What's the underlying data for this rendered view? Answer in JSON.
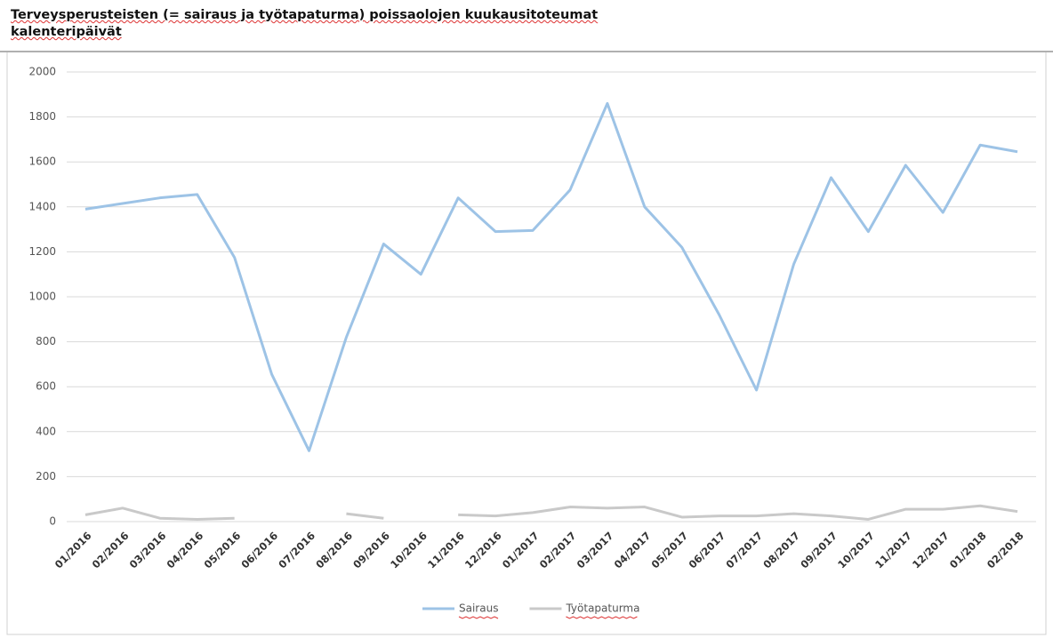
{
  "chart_data": {
    "type": "line",
    "title": [
      "Terveysperusteisten (= sairaus ja työtapaturma) poissaolojen kuukausitoteumat",
      "kalenteripäivät"
    ],
    "categories": [
      "01/2016",
      "02/2016",
      "03/2016",
      "04/2016",
      "05/2016",
      "06/2016",
      "07/2016",
      "08/2016",
      "09/2016",
      "10/2016",
      "11/2016",
      "12/2016",
      "01/2017",
      "02/2017",
      "03/2017",
      "04/2017",
      "05/2017",
      "06/2017",
      "07/2017",
      "08/2017",
      "09/2017",
      "10/2017",
      "11/2017",
      "12/2017",
      "01/2018",
      "02/2018"
    ],
    "series": [
      {
        "name": "Sairaus",
        "color": "#9dc3e6",
        "values": [
          1390,
          1415,
          1440,
          1455,
          1175,
          655,
          315,
          820,
          1235,
          1100,
          1440,
          1290,
          1295,
          1475,
          1860,
          1400,
          1220,
          920,
          585,
          1145,
          1530,
          1290,
          1585,
          1375,
          1675,
          1645
        ]
      },
      {
        "name": "Työtapaturma",
        "color": "#c9c9c9",
        "values": [
          30,
          60,
          15,
          10,
          15,
          null,
          null,
          35,
          15,
          null,
          30,
          25,
          40,
          65,
          60,
          65,
          20,
          25,
          25,
          35,
          25,
          10,
          55,
          55,
          70,
          45
        ]
      }
    ],
    "ylim": [
      0,
      2000
    ],
    "yticks": [
      0,
      200,
      400,
      600,
      800,
      1000,
      1200,
      1400,
      1600,
      1800,
      2000
    ],
    "grid": true,
    "legend": "bottom"
  }
}
